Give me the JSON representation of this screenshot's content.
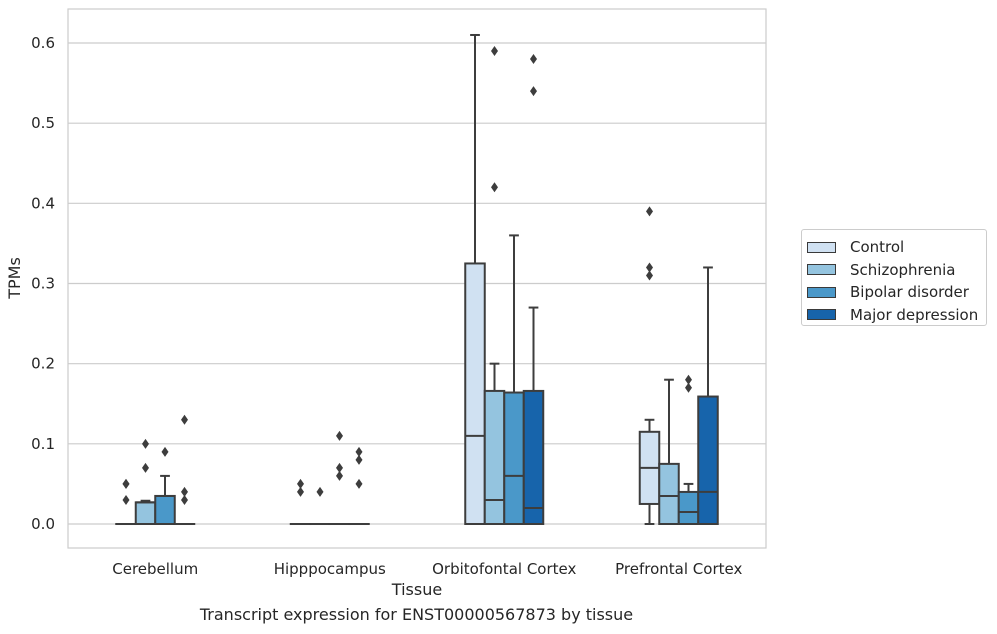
{
  "caption": "Transcript expression for ENST00000567873 by tissue",
  "chart_data": {
    "type": "boxplot",
    "xlabel": "Tissue",
    "ylabel": "TPMs",
    "ylim": [
      -0.03,
      0.64
    ],
    "yticks": [
      "0.0",
      "0.1",
      "0.2",
      "0.3",
      "0.4",
      "0.5",
      "0.6"
    ],
    "grid": true,
    "legend_position": "right",
    "categories": [
      "Cerebellum",
      "Hipppocampus",
      "Orbitofontal Cortex",
      "Prefrontal Cortex"
    ],
    "series": [
      {
        "name": "Control",
        "color": "#d0e1f2",
        "boxes": [
          {
            "q1": 0,
            "median": 0,
            "q3": 0,
            "whislo": 0,
            "whishi": 0,
            "fliers": [
              0.03,
              0.05,
              0.05
            ]
          },
          {
            "q1": 0,
            "median": 0,
            "q3": 0,
            "whislo": 0,
            "whishi": 0,
            "fliers": [
              0.04,
              0.05
            ]
          },
          {
            "q1": 0,
            "median": 0.11,
            "q3": 0.325,
            "whislo": 0,
            "whishi": 0.61,
            "fliers": []
          },
          {
            "q1": 0.025,
            "median": 0.07,
            "q3": 0.115,
            "whislo": 0,
            "whishi": 0.13,
            "fliers": [
              0.31,
              0.32,
              0.39
            ]
          }
        ]
      },
      {
        "name": "Schizophrenia",
        "color": "#94c4df",
        "boxes": [
          {
            "q1": 0,
            "median": 0.027,
            "q3": 0.027,
            "whislo": 0,
            "whishi": 0.029,
            "fliers": [
              0.07,
              0.1
            ]
          },
          {
            "q1": 0,
            "median": 0,
            "q3": 0,
            "whislo": 0,
            "whishi": 0,
            "fliers": [
              0.04
            ]
          },
          {
            "q1": 0,
            "median": 0.03,
            "q3": 0.166,
            "whislo": 0,
            "whishi": 0.2,
            "fliers": [
              0.42,
              0.59
            ]
          },
          {
            "q1": 0,
            "median": 0.035,
            "q3": 0.075,
            "whislo": 0,
            "whishi": 0.18,
            "fliers": []
          }
        ]
      },
      {
        "name": "Bipolar disorder",
        "color": "#4a98c9",
        "boxes": [
          {
            "q1": 0,
            "median": 0.035,
            "q3": 0.035,
            "whislo": 0,
            "whishi": 0.06,
            "fliers": [
              0.09
            ]
          },
          {
            "q1": 0,
            "median": 0,
            "q3": 0,
            "whislo": 0,
            "whishi": 0,
            "fliers": [
              0.06,
              0.07,
              0.11
            ]
          },
          {
            "q1": 0,
            "median": 0.06,
            "q3": 0.164,
            "whislo": 0,
            "whishi": 0.36,
            "fliers": []
          },
          {
            "q1": 0,
            "median": 0.015,
            "q3": 0.04,
            "whislo": 0,
            "whishi": 0.05,
            "fliers": [
              0.17,
              0.18
            ]
          }
        ]
      },
      {
        "name": "Major depression",
        "color": "#1764ab",
        "boxes": [
          {
            "q1": 0,
            "median": 0,
            "q3": 0,
            "whislo": 0,
            "whishi": 0,
            "fliers": [
              0.03,
              0.04,
              0.13
            ]
          },
          {
            "q1": 0,
            "median": 0,
            "q3": 0,
            "whislo": 0,
            "whishi": 0,
            "fliers": [
              0.05,
              0.08,
              0.09
            ]
          },
          {
            "q1": 0,
            "median": 0.02,
            "q3": 0.166,
            "whislo": 0,
            "whishi": 0.27,
            "fliers": [
              0.54,
              0.58
            ]
          },
          {
            "q1": 0,
            "median": 0.04,
            "q3": 0.159,
            "whislo": 0,
            "whishi": 0.32,
            "fliers": []
          }
        ]
      }
    ]
  }
}
